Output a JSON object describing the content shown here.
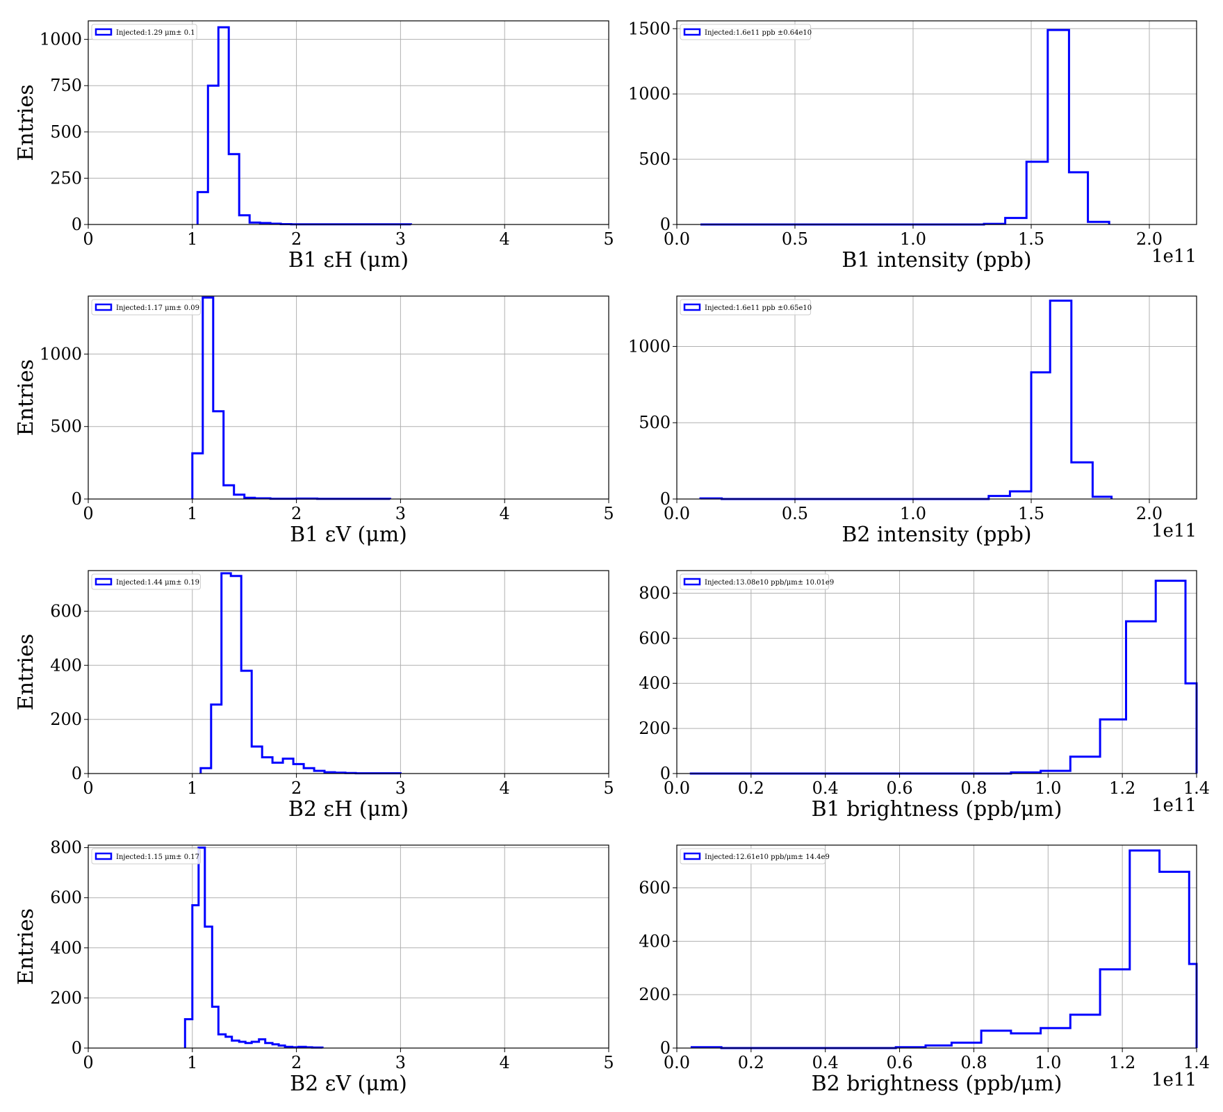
{
  "figure": {
    "line_color": "#0000ff",
    "grid_color": "#b0b0b0"
  },
  "chart_data": [
    {
      "type": "histogram",
      "xlabel": "B1 εH (μm)",
      "ylabel": "Entries",
      "legend": "Injected:1.29 μm± 0.1",
      "legend_position": "upper-left",
      "grid": true,
      "xlim": [
        0,
        5
      ],
      "ylim": [
        0,
        1100
      ],
      "xticks": [
        0,
        1,
        2,
        3,
        4,
        5
      ],
      "yticks": [
        0,
        250,
        500,
        750,
        1000
      ],
      "xtick_labels": [
        "0",
        "1",
        "2",
        "3",
        "4",
        "5"
      ],
      "ytick_labels": [
        "0",
        "250",
        "500",
        "750",
        "1000"
      ],
      "offset_label": "",
      "bin_edges": [
        1.05,
        1.15,
        1.25,
        1.35,
        1.45,
        1.55,
        1.65,
        1.75,
        1.85,
        1.95,
        3.1
      ],
      "counts": [
        175,
        750,
        1065,
        380,
        50,
        10,
        8,
        4,
        2,
        1
      ]
    },
    {
      "type": "histogram",
      "xlabel": "B1 intensity (ppb)",
      "ylabel": "",
      "legend": "Injected:1.6e11 ppb ±0.64e10",
      "legend_position": "upper-left",
      "grid": true,
      "xlim": [
        0,
        2.2
      ],
      "ylim": [
        0,
        1560
      ],
      "xticks": [
        0,
        0.5,
        1.0,
        1.5,
        2.0
      ],
      "yticks": [
        0,
        500,
        1000,
        1500
      ],
      "xtick_labels": [
        "0.0",
        "0.5",
        "1.0",
        "1.5",
        "2.0"
      ],
      "ytick_labels": [
        "0",
        "500",
        "1000",
        "1500"
      ],
      "offset_label": "1e11",
      "bin_edges": [
        0.1,
        1.3,
        1.39,
        1.48,
        1.57,
        1.66,
        1.74,
        1.83
      ],
      "counts": [
        0,
        5,
        50,
        480,
        1490,
        400,
        20
      ]
    },
    {
      "type": "histogram",
      "xlabel": "B1 εV (μm)",
      "ylabel": "Entries",
      "legend": "Injected:1.17 μm± 0.09",
      "legend_position": "upper-left",
      "grid": true,
      "xlim": [
        0,
        5
      ],
      "ylim": [
        0,
        1400
      ],
      "xticks": [
        0,
        1,
        2,
        3,
        4,
        5
      ],
      "yticks": [
        0,
        500,
        1000
      ],
      "xtick_labels": [
        "0",
        "1",
        "2",
        "3",
        "4",
        "5"
      ],
      "ytick_labels": [
        "0",
        "500",
        "1000"
      ],
      "offset_label": "",
      "bin_edges": [
        1.0,
        1.1,
        1.2,
        1.3,
        1.4,
        1.5,
        1.6,
        1.75,
        2.0,
        2.2,
        2.9
      ],
      "counts": [
        315,
        1390,
        605,
        95,
        30,
        8,
        5,
        2,
        3,
        1
      ]
    },
    {
      "type": "histogram",
      "xlabel": "B2 intensity (ppb)",
      "ylabel": "",
      "legend": "Injected:1.6e11 ppb ±0.65e10",
      "legend_position": "upper-left",
      "grid": true,
      "xlim": [
        0,
        2.2
      ],
      "ylim": [
        0,
        1330
      ],
      "xticks": [
        0,
        0.5,
        1.0,
        1.5,
        2.0
      ],
      "yticks": [
        0,
        500,
        1000
      ],
      "xtick_labels": [
        "0.0",
        "0.5",
        "1.0",
        "1.5",
        "2.0"
      ],
      "ytick_labels": [
        "0",
        "500",
        "1000"
      ],
      "offset_label": "1e11",
      "bin_edges": [
        0.1,
        0.19,
        1.32,
        1.41,
        1.5,
        1.58,
        1.67,
        1.76,
        1.84
      ],
      "counts": [
        4,
        0,
        20,
        50,
        830,
        1300,
        240,
        15
      ]
    },
    {
      "type": "histogram",
      "xlabel": "B2 εH (μm)",
      "ylabel": "Entries",
      "legend": "Injected:1.44 μm± 0.19",
      "legend_position": "upper-left",
      "grid": true,
      "xlim": [
        0,
        5
      ],
      "ylim": [
        0,
        750
      ],
      "xticks": [
        0,
        1,
        2,
        3,
        4,
        5
      ],
      "yticks": [
        0,
        200,
        400,
        600
      ],
      "xtick_labels": [
        "0",
        "1",
        "2",
        "3",
        "4",
        "5"
      ],
      "ytick_labels": [
        "0",
        "200",
        "400",
        "600"
      ],
      "offset_label": "",
      "bin_edges": [
        1.08,
        1.18,
        1.28,
        1.37,
        1.47,
        1.57,
        1.67,
        1.77,
        1.87,
        1.97,
        2.07,
        2.17,
        2.27,
        2.37,
        2.47,
        2.57,
        3.0
      ],
      "counts": [
        20,
        255,
        740,
        730,
        380,
        100,
        60,
        40,
        55,
        35,
        20,
        10,
        5,
        3,
        2,
        1
      ]
    },
    {
      "type": "histogram",
      "xlabel": "B1 brightness (ppb/μm)",
      "ylabel": "",
      "legend": "Injected:13.08e10 ppb/μm± 10.01e9",
      "legend_position": "upper-left",
      "grid": true,
      "xlim": [
        0,
        1.4
      ],
      "ylim": [
        0,
        900
      ],
      "xticks": [
        0,
        0.2,
        0.4,
        0.6,
        0.8,
        1.0,
        1.2,
        1.4
      ],
      "yticks": [
        0,
        200,
        400,
        600,
        800
      ],
      "xtick_labels": [
        "0.0",
        "0.2",
        "0.4",
        "0.6",
        "0.8",
        "1.0",
        "1.2",
        "1.4"
      ],
      "ytick_labels": [
        "0",
        "200",
        "400",
        "600",
        "800"
      ],
      "offset_label": "1e11",
      "bin_edges": [
        0.035,
        0.9,
        0.98,
        1.06,
        1.14,
        1.21,
        1.29,
        1.37,
        1.4
      ],
      "counts": [
        0,
        5,
        12,
        75,
        240,
        675,
        855,
        400
      ]
    },
    {
      "type": "histogram",
      "xlabel": "B2 εV (μm)",
      "ylabel": "Entries",
      "legend": "Injected:1.15 μm± 0.17",
      "legend_position": "upper-left",
      "grid": true,
      "xlim": [
        0,
        5
      ],
      "ylim": [
        0,
        810
      ],
      "xticks": [
        0,
        1,
        2,
        3,
        4,
        5
      ],
      "yticks": [
        0,
        200,
        400,
        600,
        800
      ],
      "xtick_labels": [
        "0",
        "1",
        "2",
        "3",
        "4",
        "5"
      ],
      "ytick_labels": [
        "0",
        "200",
        "400",
        "600",
        "800"
      ],
      "offset_label": "",
      "bin_edges": [
        0.93,
        1.0,
        1.06,
        1.12,
        1.19,
        1.25,
        1.32,
        1.38,
        1.45,
        1.51,
        1.57,
        1.64,
        1.7,
        1.77,
        1.83,
        1.89,
        1.96,
        2.02,
        2.09,
        2.15,
        2.25
      ],
      "counts": [
        115,
        570,
        800,
        485,
        165,
        55,
        45,
        30,
        25,
        20,
        25,
        35,
        20,
        15,
        10,
        5,
        3,
        5,
        3,
        2
      ]
    },
    {
      "type": "histogram",
      "xlabel": "B2 brightness (ppb/μm)",
      "ylabel": "",
      "legend": "Injected:12.61e10 ppb/μm± 14.4e9",
      "legend_position": "upper-left",
      "grid": true,
      "xlim": [
        0,
        1.4
      ],
      "ylim": [
        0,
        760
      ],
      "xticks": [
        0,
        0.2,
        0.4,
        0.6,
        0.8,
        1.0,
        1.2,
        1.4
      ],
      "yticks": [
        0,
        200,
        400,
        600
      ],
      "xtick_labels": [
        "0.0",
        "0.2",
        "0.4",
        "0.6",
        "0.8",
        "1.0",
        "1.2",
        "1.4"
      ],
      "ytick_labels": [
        "0",
        "200",
        "400",
        "600"
      ],
      "offset_label": "1e11",
      "bin_edges": [
        0.04,
        0.12,
        0.59,
        0.67,
        0.74,
        0.82,
        0.9,
        0.98,
        1.06,
        1.14,
        1.22,
        1.3,
        1.38,
        1.4
      ],
      "counts": [
        3,
        0,
        3,
        10,
        20,
        65,
        55,
        75,
        125,
        295,
        740,
        660,
        315
      ]
    }
  ]
}
